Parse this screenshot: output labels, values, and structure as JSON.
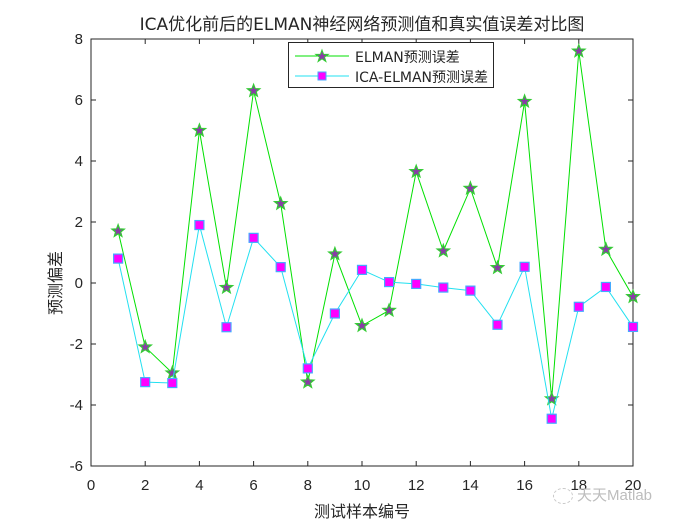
{
  "chart_data": {
    "type": "line",
    "title": "ICA优化前后的ELMAN神经网络预测值和真实值误差对比图",
    "xlabel": "测试样本编号",
    "ylabel": "预测偏差",
    "xlim": [
      0,
      20
    ],
    "ylim": [
      -6,
      8
    ],
    "xticks": [
      0,
      2,
      4,
      6,
      8,
      10,
      12,
      14,
      16,
      18,
      20
    ],
    "yticks": [
      -6,
      -4,
      -2,
      0,
      2,
      4,
      6,
      8
    ],
    "grid": false,
    "legend_position": "top-center",
    "x": [
      1,
      2,
      3,
      4,
      5,
      6,
      7,
      8,
      9,
      10,
      11,
      12,
      13,
      14,
      15,
      16,
      17,
      18,
      19,
      20
    ],
    "series": [
      {
        "name": "ELMAN预测误差",
        "line_color": "#00e000",
        "marker": "pentagram",
        "marker_face": "#8b3aa8",
        "marker_edge": "#33cc33",
        "values": [
          1.7,
          -2.1,
          -2.95,
          5.0,
          -0.15,
          6.3,
          2.6,
          -3.25,
          0.95,
          -1.4,
          -0.9,
          3.65,
          1.05,
          3.1,
          0.5,
          5.95,
          -3.8,
          7.6,
          1.1,
          -0.45
        ]
      },
      {
        "name": "ICA-ELMAN预测误差",
        "line_color": "#22e0f0",
        "marker": "square",
        "marker_face": "#ff00ff",
        "marker_edge": "#44aaff",
        "values": [
          0.8,
          -3.25,
          -3.28,
          1.9,
          -1.45,
          1.48,
          0.52,
          -2.8,
          -1.0,
          0.43,
          0.03,
          -0.03,
          -0.15,
          -0.25,
          -1.37,
          0.53,
          -4.45,
          -0.78,
          -0.13,
          -1.44
        ]
      }
    ]
  },
  "watermark": {
    "text": "天天Matlab"
  }
}
